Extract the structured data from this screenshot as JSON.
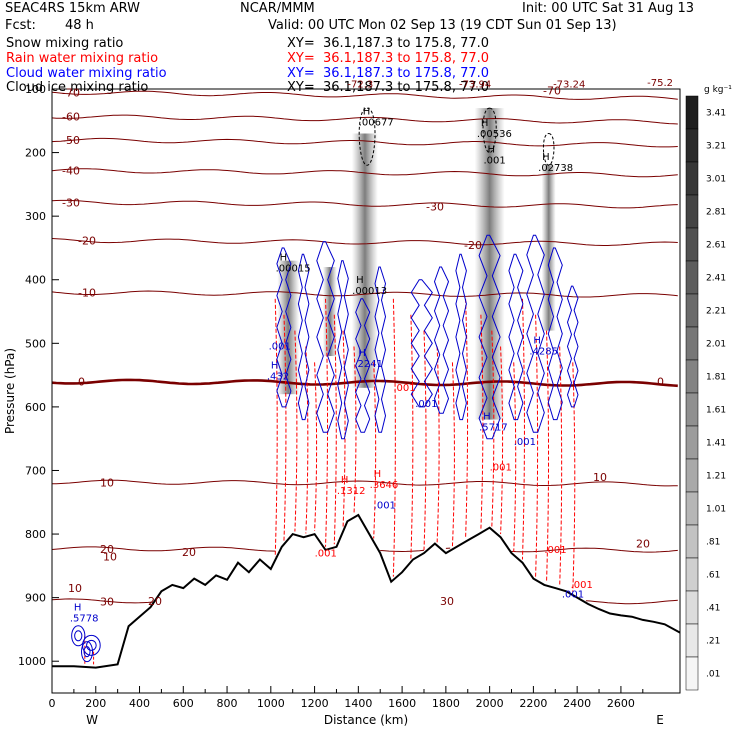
{
  "header": {
    "model": "SEAC4RS 15km ARW",
    "org": "NCAR/MMM",
    "init": "Init: 00 UTC Sat 31 Aug 13",
    "fcst_label": "Fcst:",
    "fcst_value": "48 h",
    "valid": "Valid: 00 UTC Mon 02 Sep 13 (19 CDT Sun 01 Sep 13)",
    "fields": [
      {
        "name": "Snow mixing ratio",
        "xy": "XY=  36.1,187.3 to 175.8, 77.0",
        "color": "#000000"
      },
      {
        "name": "Rain water mixing ratio",
        "xy": "XY=  36.1,187.3 to 175.8, 77.0",
        "color": "#ff0000"
      },
      {
        "name": "Cloud water mixing ratio",
        "xy": "XY=  36.1,187.3 to 175.8, 77.0",
        "color": "#0000ff"
      },
      {
        "name": "Cloud ice mixing ratio",
        "xy": "XY=  36.1,187.3 to 175.8, 77.0",
        "color": "#000000"
      }
    ]
  },
  "chart_data": {
    "type": "cross-section",
    "xlabel": "Distance (km)",
    "ylabel": "Pressure (hPa)",
    "xlim": [
      0,
      2870
    ],
    "ylim": [
      100,
      1050
    ],
    "x_ticks": [
      "0",
      "200",
      "400",
      "600",
      "800",
      "1000",
      "1200",
      "1400",
      "1600",
      "1800",
      "2000",
      "2200",
      "2400",
      "2600"
    ],
    "y_ticks": [
      "100",
      "200",
      "300",
      "400",
      "500",
      "600",
      "700",
      "800",
      "900",
      "1000"
    ],
    "x_end_labels": {
      "left": "W",
      "right": "E"
    },
    "colorbar": {
      "unit": "g kg⁻¹",
      "ticks": [
        "3.41",
        "3.21",
        "3.01",
        "2.81",
        "2.61",
        "2.41",
        "2.21",
        "2.01",
        "1.81",
        "1.61",
        "1.41",
        "1.21",
        "1.01",
        ".81",
        ".61",
        ".41",
        ".21",
        ".01"
      ]
    },
    "terrain_pressure": [
      {
        "x": 0,
        "p": 1008
      },
      {
        "x": 100,
        "p": 1008
      },
      {
        "x": 200,
        "p": 1010
      },
      {
        "x": 300,
        "p": 1005
      },
      {
        "x": 350,
        "p": 945
      },
      {
        "x": 400,
        "p": 930
      },
      {
        "x": 450,
        "p": 915
      },
      {
        "x": 500,
        "p": 890
      },
      {
        "x": 550,
        "p": 880
      },
      {
        "x": 600,
        "p": 885
      },
      {
        "x": 650,
        "p": 870
      },
      {
        "x": 700,
        "p": 880
      },
      {
        "x": 750,
        "p": 865
      },
      {
        "x": 800,
        "p": 872
      },
      {
        "x": 850,
        "p": 845
      },
      {
        "x": 900,
        "p": 860
      },
      {
        "x": 950,
        "p": 840
      },
      {
        "x": 1000,
        "p": 855
      },
      {
        "x": 1050,
        "p": 820
      },
      {
        "x": 1100,
        "p": 800
      },
      {
        "x": 1150,
        "p": 805
      },
      {
        "x": 1200,
        "p": 800
      },
      {
        "x": 1250,
        "p": 825
      },
      {
        "x": 1300,
        "p": 820
      },
      {
        "x": 1350,
        "p": 780
      },
      {
        "x": 1400,
        "p": 770
      },
      {
        "x": 1450,
        "p": 800
      },
      {
        "x": 1500,
        "p": 830
      },
      {
        "x": 1550,
        "p": 875
      },
      {
        "x": 1600,
        "p": 860
      },
      {
        "x": 1650,
        "p": 840
      },
      {
        "x": 1700,
        "p": 830
      },
      {
        "x": 1750,
        "p": 815
      },
      {
        "x": 1800,
        "p": 830
      },
      {
        "x": 1850,
        "p": 820
      },
      {
        "x": 1900,
        "p": 810
      },
      {
        "x": 1950,
        "p": 800
      },
      {
        "x": 2000,
        "p": 790
      },
      {
        "x": 2050,
        "p": 805
      },
      {
        "x": 2100,
        "p": 830
      },
      {
        "x": 2150,
        "p": 845
      },
      {
        "x": 2200,
        "p": 870
      },
      {
        "x": 2250,
        "p": 880
      },
      {
        "x": 2300,
        "p": 885
      },
      {
        "x": 2350,
        "p": 890
      },
      {
        "x": 2400,
        "p": 900
      },
      {
        "x": 2450,
        "p": 910
      },
      {
        "x": 2500,
        "p": 918
      },
      {
        "x": 2550,
        "p": 925
      },
      {
        "x": 2600,
        "p": 928
      },
      {
        "x": 2650,
        "p": 930
      },
      {
        "x": 2700,
        "p": 935
      },
      {
        "x": 2750,
        "p": 938
      },
      {
        "x": 2800,
        "p": 942
      },
      {
        "x": 2870,
        "p": 955
      }
    ],
    "isotherms": [
      {
        "t": -70,
        "p": 105
      },
      {
        "t": -60,
        "p": 143
      },
      {
        "t": -50,
        "p": 180
      },
      {
        "t": -40,
        "p": 228
      },
      {
        "t": -30,
        "p": 278
      },
      {
        "t": -20,
        "p": 338
      },
      {
        "t": -10,
        "p": 420
      },
      {
        "t": 0,
        "p": 560
      },
      {
        "t": 10,
        "p": 718
      },
      {
        "t": 20,
        "p": 823
      },
      {
        "t": 30,
        "p": 905
      }
    ],
    "isotherm_labels": [
      "-70",
      "-60",
      "-50",
      "-40",
      "-30",
      "-20",
      "-10",
      "0",
      "10",
      "20",
      "30"
    ],
    "max_labels": [
      {
        "mark": "H",
        "value": ".00677"
      },
      {
        "mark": "H",
        "value": ".00536"
      },
      {
        "mark": "H",
        "value": ".001"
      },
      {
        "mark": "H",
        "value": ".02738"
      },
      {
        "mark": "H",
        "value": ".00015"
      },
      {
        "mark": "H",
        "value": ".00013"
      },
      {
        "mark": "H",
        "value": ".4285"
      },
      {
        "mark": "H",
        "value": ".2241"
      },
      {
        "mark": "H",
        "value": ".432"
      },
      {
        "mark": "H",
        "value": ".5778"
      },
      {
        "mark": "H",
        "value": ".3646"
      },
      {
        "mark": "H",
        "value": ".1312"
      },
      {
        "mark": "H",
        "value": ".5717"
      }
    ],
    "top_labels": [
      "-72.3",
      "-73.94",
      "-73.24",
      "-75.2"
    ],
    "contour_labels": [
      ".001",
      ".001",
      ".001",
      ".001",
      ".001",
      ".001",
      ".001",
      ".001",
      ".001",
      ".001"
    ]
  }
}
